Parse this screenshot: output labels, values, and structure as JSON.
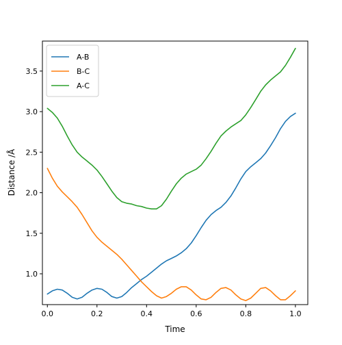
{
  "chart_data": {
    "type": "line",
    "xlabel": "Time",
    "ylabel": "Distance /Å",
    "xlim": [
      -0.02,
      1.05
    ],
    "ylim": [
      0.62,
      3.87
    ],
    "xticks": [
      0.0,
      0.2,
      0.4,
      0.6,
      0.8,
      1.0
    ],
    "xtick_labels": [
      "0.0",
      "0.2",
      "0.4",
      "0.6",
      "0.8",
      "1.0"
    ],
    "yticks": [
      1.0,
      1.5,
      2.0,
      2.5,
      3.0,
      3.5
    ],
    "ytick_labels": [
      "1.0",
      "1.5",
      "2.0",
      "2.5",
      "3.0",
      "3.5"
    ],
    "grid": false,
    "legend_position": "top-left",
    "series": [
      {
        "name": "A-B",
        "color": "#1f77b4",
        "x": [
          0.0,
          0.02,
          0.04,
          0.06,
          0.08,
          0.1,
          0.12,
          0.14,
          0.16,
          0.18,
          0.2,
          0.22,
          0.24,
          0.26,
          0.28,
          0.3,
          0.32,
          0.34,
          0.36,
          0.38,
          0.4,
          0.42,
          0.44,
          0.46,
          0.48,
          0.5,
          0.52,
          0.54,
          0.56,
          0.58,
          0.6,
          0.62,
          0.64,
          0.66,
          0.68,
          0.7,
          0.72,
          0.74,
          0.76,
          0.78,
          0.8,
          0.82,
          0.84,
          0.86,
          0.88,
          0.9,
          0.92,
          0.94,
          0.96,
          0.98,
          1.0
        ],
        "y": [
          0.75,
          0.79,
          0.81,
          0.8,
          0.76,
          0.71,
          0.69,
          0.71,
          0.76,
          0.8,
          0.82,
          0.81,
          0.77,
          0.72,
          0.7,
          0.72,
          0.77,
          0.83,
          0.88,
          0.93,
          0.97,
          1.02,
          1.07,
          1.12,
          1.16,
          1.19,
          1.22,
          1.26,
          1.31,
          1.38,
          1.47,
          1.57,
          1.66,
          1.73,
          1.78,
          1.82,
          1.88,
          1.96,
          2.06,
          2.17,
          2.26,
          2.32,
          2.37,
          2.42,
          2.49,
          2.58,
          2.68,
          2.79,
          2.88,
          2.94,
          2.98
        ]
      },
      {
        "name": "B-C",
        "color": "#ff7f0e",
        "x": [
          0.0,
          0.02,
          0.04,
          0.06,
          0.08,
          0.1,
          0.12,
          0.14,
          0.16,
          0.18,
          0.2,
          0.22,
          0.24,
          0.26,
          0.28,
          0.3,
          0.32,
          0.34,
          0.36,
          0.38,
          0.4,
          0.42,
          0.44,
          0.46,
          0.48,
          0.5,
          0.52,
          0.54,
          0.56,
          0.58,
          0.6,
          0.62,
          0.64,
          0.66,
          0.68,
          0.7,
          0.72,
          0.74,
          0.76,
          0.78,
          0.8,
          0.82,
          0.84,
          0.86,
          0.88,
          0.9,
          0.92,
          0.94,
          0.96,
          0.98,
          1.0
        ],
        "y": [
          2.3,
          2.18,
          2.08,
          2.01,
          1.95,
          1.89,
          1.82,
          1.73,
          1.63,
          1.53,
          1.45,
          1.39,
          1.34,
          1.29,
          1.24,
          1.18,
          1.11,
          1.04,
          0.97,
          0.9,
          0.84,
          0.78,
          0.73,
          0.7,
          0.72,
          0.76,
          0.81,
          0.84,
          0.84,
          0.8,
          0.74,
          0.69,
          0.68,
          0.71,
          0.77,
          0.82,
          0.83,
          0.8,
          0.74,
          0.69,
          0.67,
          0.7,
          0.76,
          0.82,
          0.83,
          0.79,
          0.73,
          0.68,
          0.68,
          0.73,
          0.79
        ]
      },
      {
        "name": "A-C",
        "color": "#2ca02c",
        "x": [
          0.0,
          0.02,
          0.04,
          0.06,
          0.08,
          0.1,
          0.12,
          0.14,
          0.16,
          0.18,
          0.2,
          0.22,
          0.24,
          0.26,
          0.28,
          0.3,
          0.32,
          0.34,
          0.36,
          0.38,
          0.4,
          0.42,
          0.44,
          0.46,
          0.48,
          0.5,
          0.52,
          0.54,
          0.56,
          0.58,
          0.6,
          0.62,
          0.64,
          0.66,
          0.68,
          0.7,
          0.72,
          0.74,
          0.76,
          0.78,
          0.8,
          0.82,
          0.84,
          0.86,
          0.88,
          0.9,
          0.92,
          0.94,
          0.96,
          0.98,
          1.0
        ],
        "y": [
          3.04,
          2.99,
          2.92,
          2.82,
          2.7,
          2.59,
          2.5,
          2.44,
          2.39,
          2.34,
          2.28,
          2.2,
          2.11,
          2.02,
          1.94,
          1.89,
          1.87,
          1.86,
          1.84,
          1.83,
          1.81,
          1.8,
          1.8,
          1.84,
          1.92,
          2.02,
          2.11,
          2.18,
          2.23,
          2.26,
          2.29,
          2.34,
          2.42,
          2.51,
          2.61,
          2.7,
          2.76,
          2.81,
          2.85,
          2.89,
          2.96,
          3.05,
          3.15,
          3.25,
          3.33,
          3.39,
          3.44,
          3.49,
          3.57,
          3.67,
          3.78
        ]
      }
    ]
  }
}
